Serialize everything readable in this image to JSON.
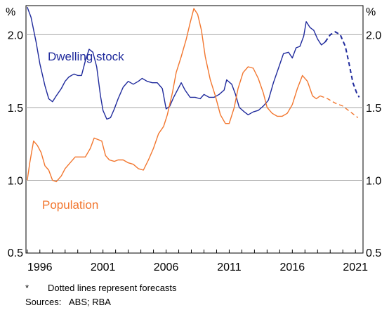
{
  "chart_data": {
    "type": "line",
    "y_unit_left": "%",
    "y_unit_right": "%",
    "ylim": [
      0.5,
      2.2
    ],
    "yticks": [
      "2.0",
      "1.5",
      "1.0",
      "0.5"
    ],
    "ytick_values": [
      2.0,
      1.5,
      1.0,
      0.5
    ],
    "xlim": [
      1994.9,
      2021.6
    ],
    "xticks": [
      "1996",
      "2001",
      "2006",
      "2011",
      "2016",
      "2021"
    ],
    "xtick_values": [
      1996,
      2001,
      2006,
      2011,
      2016,
      2021
    ],
    "grid": true,
    "series": [
      {
        "name": "Dwelling stock",
        "color": "#1f2a9c",
        "actual": [
          [
            1995.0,
            2.19
          ],
          [
            1995.3,
            2.12
          ],
          [
            1995.7,
            1.95
          ],
          [
            1996.0,
            1.8
          ],
          [
            1996.4,
            1.65
          ],
          [
            1996.7,
            1.56
          ],
          [
            1997.0,
            1.54
          ],
          [
            1997.3,
            1.58
          ],
          [
            1997.7,
            1.63
          ],
          [
            1998.0,
            1.68
          ],
          [
            1998.3,
            1.71
          ],
          [
            1998.7,
            1.73
          ],
          [
            1999.0,
            1.72
          ],
          [
            1999.3,
            1.72
          ],
          [
            1999.6,
            1.82
          ],
          [
            1999.9,
            1.9
          ],
          [
            2000.2,
            1.88
          ],
          [
            2000.5,
            1.78
          ],
          [
            2000.8,
            1.58
          ],
          [
            2001.0,
            1.48
          ],
          [
            2001.3,
            1.42
          ],
          [
            2001.6,
            1.43
          ],
          [
            2001.9,
            1.49
          ],
          [
            2002.2,
            1.56
          ],
          [
            2002.6,
            1.64
          ],
          [
            2003.0,
            1.68
          ],
          [
            2003.4,
            1.66
          ],
          [
            2003.8,
            1.68
          ],
          [
            2004.1,
            1.7
          ],
          [
            2004.5,
            1.68
          ],
          [
            2004.9,
            1.67
          ],
          [
            2005.3,
            1.67
          ],
          [
            2005.7,
            1.63
          ],
          [
            2006.0,
            1.49
          ],
          [
            2006.3,
            1.51
          ],
          [
            2006.6,
            1.57
          ],
          [
            2006.9,
            1.62
          ],
          [
            2007.2,
            1.67
          ],
          [
            2007.5,
            1.62
          ],
          [
            2007.9,
            1.57
          ],
          [
            2008.3,
            1.57
          ],
          [
            2008.7,
            1.56
          ],
          [
            2009.0,
            1.59
          ],
          [
            2009.4,
            1.57
          ],
          [
            2009.8,
            1.57
          ],
          [
            2010.2,
            1.59
          ],
          [
            2010.6,
            1.62
          ],
          [
            2010.8,
            1.69
          ],
          [
            2011.2,
            1.66
          ],
          [
            2011.5,
            1.59
          ],
          [
            2011.8,
            1.5
          ],
          [
            2012.2,
            1.47
          ],
          [
            2012.5,
            1.45
          ],
          [
            2012.9,
            1.47
          ],
          [
            2013.3,
            1.48
          ],
          [
            2013.7,
            1.51
          ],
          [
            2014.1,
            1.55
          ],
          [
            2014.5,
            1.67
          ],
          [
            2014.9,
            1.77
          ],
          [
            2015.3,
            1.87
          ],
          [
            2015.7,
            1.88
          ],
          [
            2016.0,
            1.84
          ],
          [
            2016.3,
            1.91
          ],
          [
            2016.6,
            1.92
          ],
          [
            2016.9,
            1.99
          ],
          [
            2017.1,
            2.09
          ],
          [
            2017.4,
            2.05
          ],
          [
            2017.7,
            2.03
          ],
          [
            2018.0,
            1.97
          ],
          [
            2018.3,
            1.93
          ],
          [
            2018.6,
            1.95
          ]
        ],
        "forecast": [
          [
            2018.6,
            1.95
          ],
          [
            2019.0,
            2.0
          ],
          [
            2019.4,
            2.02
          ],
          [
            2019.8,
            2.0
          ],
          [
            2020.2,
            1.92
          ],
          [
            2020.5,
            1.8
          ],
          [
            2020.8,
            1.67
          ],
          [
            2021.1,
            1.6
          ],
          [
            2021.3,
            1.57
          ]
        ]
      },
      {
        "name": "Population",
        "color": "#f2762e",
        "actual": [
          [
            1995.0,
            1.0
          ],
          [
            1995.2,
            1.12
          ],
          [
            1995.5,
            1.27
          ],
          [
            1995.8,
            1.24
          ],
          [
            1996.1,
            1.19
          ],
          [
            1996.4,
            1.1
          ],
          [
            1996.7,
            1.07
          ],
          [
            1997.0,
            1.0
          ],
          [
            1997.3,
            0.99
          ],
          [
            1997.7,
            1.03
          ],
          [
            1998.0,
            1.08
          ],
          [
            1998.4,
            1.12
          ],
          [
            1998.8,
            1.16
          ],
          [
            1999.2,
            1.16
          ],
          [
            1999.6,
            1.16
          ],
          [
            2000.0,
            1.22
          ],
          [
            2000.3,
            1.29
          ],
          [
            2000.6,
            1.28
          ],
          [
            2000.9,
            1.27
          ],
          [
            2001.2,
            1.17
          ],
          [
            2001.5,
            1.14
          ],
          [
            2001.9,
            1.13
          ],
          [
            2002.2,
            1.14
          ],
          [
            2002.6,
            1.14
          ],
          [
            2003.0,
            1.12
          ],
          [
            2003.4,
            1.11
          ],
          [
            2003.8,
            1.08
          ],
          [
            2004.2,
            1.07
          ],
          [
            2004.6,
            1.14
          ],
          [
            2005.0,
            1.22
          ],
          [
            2005.4,
            1.32
          ],
          [
            2005.8,
            1.37
          ],
          [
            2006.1,
            1.45
          ],
          [
            2006.5,
            1.6
          ],
          [
            2006.8,
            1.74
          ],
          [
            2007.2,
            1.85
          ],
          [
            2007.6,
            1.97
          ],
          [
            2007.9,
            2.08
          ],
          [
            2008.2,
            2.18
          ],
          [
            2008.5,
            2.14
          ],
          [
            2008.8,
            2.03
          ],
          [
            2009.1,
            1.85
          ],
          [
            2009.5,
            1.69
          ],
          [
            2009.9,
            1.58
          ],
          [
            2010.3,
            1.45
          ],
          [
            2010.7,
            1.39
          ],
          [
            2011.0,
            1.39
          ],
          [
            2011.4,
            1.5
          ],
          [
            2011.7,
            1.63
          ],
          [
            2012.1,
            1.74
          ],
          [
            2012.5,
            1.78
          ],
          [
            2012.9,
            1.77
          ],
          [
            2013.3,
            1.7
          ],
          [
            2013.7,
            1.6
          ],
          [
            2014.0,
            1.5
          ],
          [
            2014.4,
            1.46
          ],
          [
            2014.8,
            1.44
          ],
          [
            2015.2,
            1.44
          ],
          [
            2015.6,
            1.46
          ],
          [
            2016.0,
            1.52
          ],
          [
            2016.4,
            1.63
          ],
          [
            2016.8,
            1.72
          ],
          [
            2017.2,
            1.68
          ],
          [
            2017.6,
            1.58
          ],
          [
            2017.9,
            1.56
          ],
          [
            2018.2,
            1.58
          ]
        ],
        "forecast": [
          [
            2018.2,
            1.58
          ],
          [
            2018.8,
            1.56
          ],
          [
            2019.4,
            1.53
          ],
          [
            2020.0,
            1.51
          ],
          [
            2020.6,
            1.47
          ],
          [
            2021.2,
            1.43
          ]
        ]
      }
    ]
  },
  "notes": {
    "footnote_marker": "*",
    "footnote_text": "Dotted lines represent forecasts",
    "sources_label": "Sources:",
    "sources_text": "ABS; RBA"
  }
}
